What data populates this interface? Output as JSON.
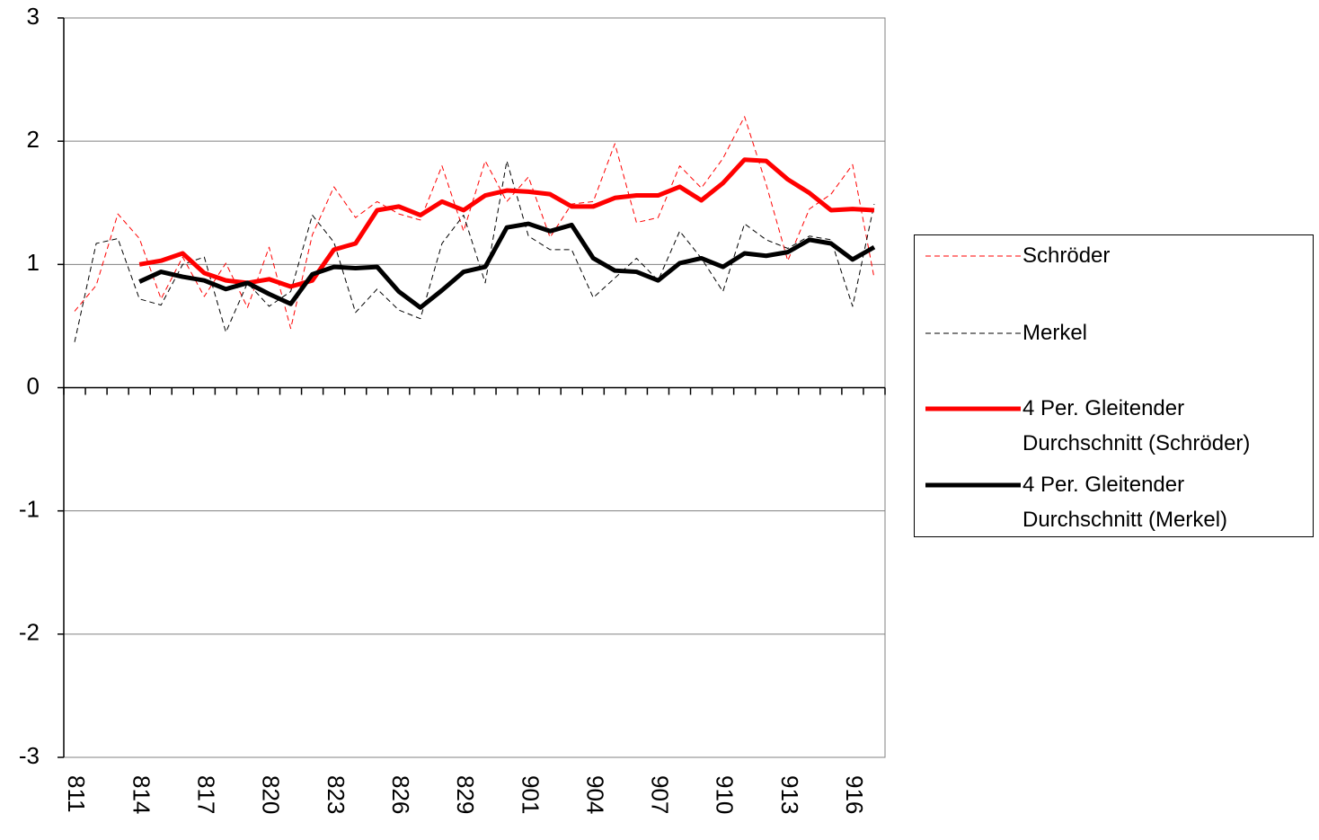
{
  "chart_data": {
    "type": "line",
    "categories": [
      "811",
      null,
      null,
      "814",
      null,
      null,
      "817",
      null,
      null,
      "820",
      null,
      null,
      "823",
      null,
      null,
      "826",
      null,
      null,
      "829",
      null,
      null,
      "901",
      null,
      null,
      "904",
      null,
      null,
      "907",
      null,
      null,
      "910",
      null,
      null,
      "913",
      null,
      null,
      "916",
      null
    ],
    "series": [
      {
        "name": "Schröder",
        "color": "#ff0000",
        "style": "dashed",
        "width": 1,
        "values": [
          0.62,
          0.83,
          1.41,
          1.21,
          0.72,
          1.06,
          0.74,
          1.01,
          0.65,
          1.14,
          0.48,
          1.24,
          1.63,
          1.38,
          1.51,
          1.41,
          1.36,
          1.8,
          1.27,
          1.84,
          1.51,
          1.71,
          1.22,
          1.49,
          1.51,
          1.98,
          1.34,
          1.38,
          1.8,
          1.62,
          1.86,
          2.2,
          1.65,
          1.03,
          1.45,
          1.57,
          1.81,
          0.89
        ]
      },
      {
        "name": "Merkel",
        "color": "#000000",
        "style": "dashed",
        "width": 1,
        "values": [
          0.37,
          1.17,
          1.21,
          0.72,
          0.67,
          1.0,
          1.06,
          0.45,
          0.85,
          0.66,
          0.78,
          1.4,
          1.18,
          0.61,
          0.8,
          0.63,
          0.56,
          1.17,
          1.4,
          0.85,
          1.84,
          1.23,
          1.12,
          1.12,
          0.73,
          0.89,
          1.05,
          0.87,
          1.27,
          1.05,
          0.78,
          1.33,
          1.2,
          1.13,
          1.23,
          1.2,
          0.66,
          1.49
        ]
      },
      {
        "name": "4 Per. Gleitender Durchschnitt (Schröder)",
        "color": "#ff0000",
        "style": "solid",
        "width": 5,
        "values": [
          null,
          null,
          null,
          1.0,
          1.03,
          1.09,
          0.93,
          0.87,
          0.85,
          0.88,
          0.82,
          0.87,
          1.12,
          1.17,
          1.44,
          1.47,
          1.4,
          1.51,
          1.44,
          1.56,
          1.6,
          1.59,
          1.57,
          1.47,
          1.47,
          1.54,
          1.56,
          1.56,
          1.63,
          1.52,
          1.66,
          1.85,
          1.84,
          1.69,
          1.58,
          1.44,
          1.45,
          1.44
        ]
      },
      {
        "name": "4 Per. Gleitender Durchschnitt (Merkel)",
        "color": "#000000",
        "style": "solid",
        "width": 5,
        "values": [
          null,
          null,
          null,
          0.86,
          0.94,
          0.9,
          0.87,
          0.8,
          0.85,
          0.76,
          0.68,
          0.92,
          0.98,
          0.97,
          0.98,
          0.78,
          0.65,
          0.79,
          0.94,
          0.98,
          1.3,
          1.33,
          1.27,
          1.32,
          1.05,
          0.95,
          0.94,
          0.87,
          1.01,
          1.05,
          0.98,
          1.09,
          1.07,
          1.1,
          1.2,
          1.17,
          1.04,
          1.14
        ]
      }
    ],
    "ylim": [
      -3,
      3
    ],
    "yticks": [
      -3,
      -2,
      -1,
      0,
      1,
      2,
      3
    ],
    "grid": true,
    "legend": "right"
  }
}
